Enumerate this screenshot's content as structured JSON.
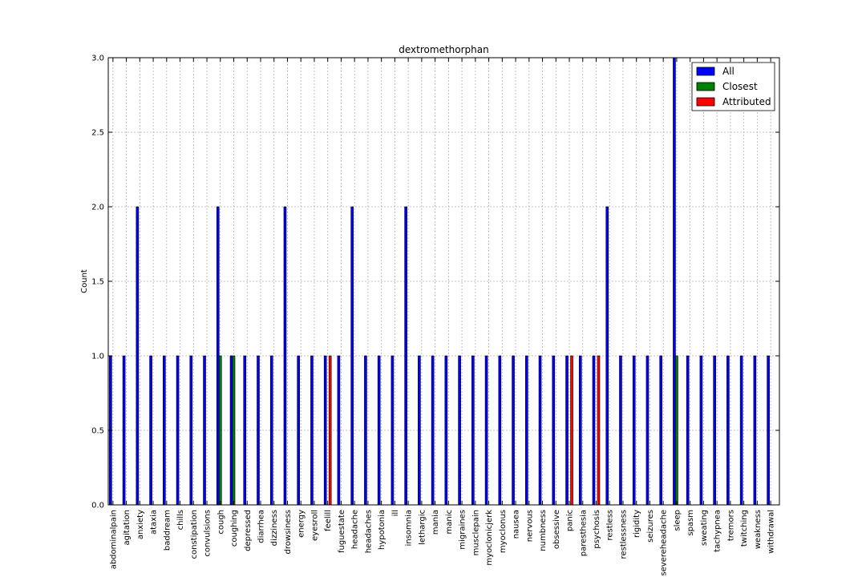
{
  "chart_data": {
    "type": "bar",
    "title": "dextromethorphan",
    "xlabel": "",
    "ylabel": "Count",
    "ylim": [
      0,
      3
    ],
    "yticks": [
      "0.0",
      "0.5",
      "1.0",
      "1.5",
      "2.0",
      "2.5",
      "3.0"
    ],
    "grid": true,
    "legend_position": "top-right",
    "categories": [
      "abdominalpain",
      "agitation",
      "anxiety",
      "ataxia",
      "baddream",
      "chills",
      "constipation",
      "convulsions",
      "cough",
      "coughing",
      "depressed",
      "diarrhea",
      "dizziness",
      "drowsiness",
      "energy",
      "eyesroll",
      "feelill",
      "fuguestate",
      "headache",
      "headaches",
      "hypotonia",
      "ill",
      "insomnia",
      "lethargic",
      "mania",
      "manic",
      "migraines",
      "musclepain",
      "myoclonicjerk",
      "myoclonus",
      "nausea",
      "nervous",
      "numbness",
      "obsessive",
      "panic",
      "paresthesia",
      "psychosis",
      "restless",
      "restlessness",
      "rigidity",
      "seizures",
      "severeheadache",
      "sleep",
      "spasm",
      "sweating",
      "tachypnea",
      "tremors",
      "twitching",
      "weakness",
      "withdrawal"
    ],
    "series": [
      {
        "name": "All",
        "color": "#0000ff",
        "values": [
          1,
          1,
          2,
          1,
          1,
          1,
          1,
          1,
          2,
          1,
          1,
          1,
          1,
          2,
          1,
          1,
          1,
          1,
          2,
          1,
          1,
          1,
          2,
          1,
          1,
          1,
          1,
          1,
          1,
          1,
          1,
          1,
          1,
          1,
          1,
          1,
          1,
          2,
          1,
          1,
          1,
          1,
          3,
          1,
          1,
          1,
          1,
          1,
          1,
          1
        ]
      },
      {
        "name": "Closest",
        "color": "#008000",
        "values": [
          0,
          0,
          0,
          0,
          0,
          0,
          0,
          0,
          1,
          1,
          0,
          0,
          0,
          0,
          0,
          0,
          0,
          0,
          0,
          0,
          0,
          0,
          0,
          0,
          0,
          0,
          0,
          0,
          0,
          0,
          0,
          0,
          0,
          0,
          0,
          0,
          0,
          0,
          0,
          0,
          0,
          0,
          1,
          0,
          0,
          0,
          0,
          0,
          0,
          0
        ]
      },
      {
        "name": "Attributed",
        "color": "#ff0000",
        "values": [
          0,
          0,
          0,
          0,
          0,
          0,
          0,
          0,
          0,
          0,
          0,
          0,
          0,
          0,
          0,
          0,
          1,
          0,
          0,
          0,
          0,
          0,
          0,
          0,
          0,
          0,
          0,
          0,
          0,
          0,
          0,
          0,
          0,
          0,
          1,
          0,
          1,
          0,
          0,
          0,
          0,
          0,
          0,
          0,
          0,
          0,
          0,
          0,
          0,
          0
        ]
      }
    ]
  }
}
